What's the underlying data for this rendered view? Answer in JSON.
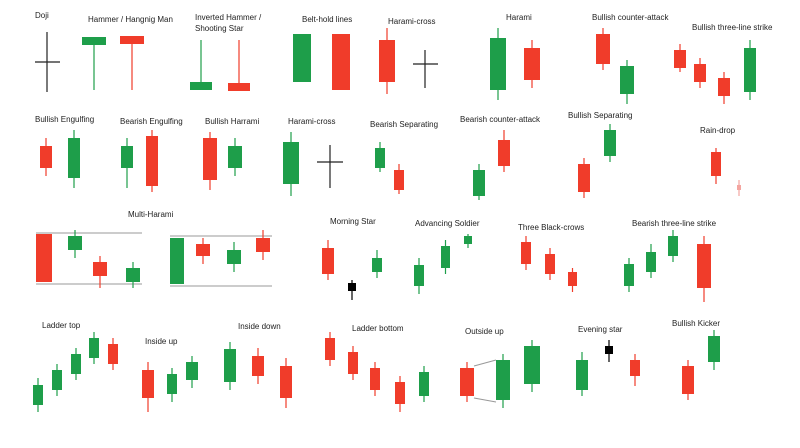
{
  "patterns": [
    {
      "label": "Doji"
    },
    {
      "label": "Hammer / Hangnig Man"
    },
    {
      "label": [
        "Inverted Hammer /",
        "Shooting Star"
      ]
    },
    {
      "label": "Belt-hold lines"
    },
    {
      "label": "Harami-cross"
    },
    {
      "label": "Harami"
    },
    {
      "label": "Bullish counter-attack"
    },
    {
      "label": "Bullish three-line strike"
    },
    {
      "label": "Bullish Engulfing"
    },
    {
      "label": "Bearish Engulfing"
    },
    {
      "label": "Bullish Harrami"
    },
    {
      "label": "Harami-cross"
    },
    {
      "label": "Bearish Separating"
    },
    {
      "label": "Bearish counter-attack"
    },
    {
      "label": "Bullish Separating"
    },
    {
      "label": "Rain-drop"
    },
    {
      "label": "Multi-Harami"
    },
    {
      "label": "Morning Star"
    },
    {
      "label": "Advancing Soldier"
    },
    {
      "label": "Three Black-crows"
    },
    {
      "label": "Bearish three-line strike"
    },
    {
      "label": "Ladder top"
    },
    {
      "label": "Inside up"
    },
    {
      "label": "Inside down"
    },
    {
      "label": "Ladder bottom"
    },
    {
      "label": "Outside up"
    },
    {
      "label": "Evening star"
    },
    {
      "label": "Bullish Kicker"
    }
  ]
}
